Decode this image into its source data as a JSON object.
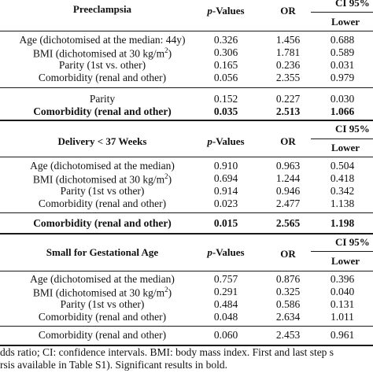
{
  "sections": [
    {
      "title": "Preeclampsia",
      "col_p": "p",
      "col_p_rest": "-Values",
      "col_or": "OR",
      "col_ci": "CI 95%",
      "col_lower": "Lower",
      "rows": [
        {
          "label": "Age (dichotomised at the median: 44y)",
          "p": "0.326",
          "or": "1.456",
          "lower": "0.688"
        },
        {
          "label": "BMI (dichotomised at 30 kg/m",
          "sup": "2",
          "label_end": ")",
          "p": "0.306",
          "or": "1.781",
          "lower": "0.589"
        },
        {
          "label": "Parity (1st vs. other)",
          "p": "0.165",
          "or": "0.236",
          "lower": "0.031"
        },
        {
          "label": "Comorbidity (renal and other)",
          "p": "0.056",
          "or": "2.355",
          "lower": "0.979"
        }
      ],
      "final_rows": [
        {
          "label": "Parity",
          "p": "0.152",
          "or": "0.227",
          "lower": "0.030"
        },
        {
          "label": "Comorbidity (renal and other)",
          "p": "0.035",
          "or": "2.513",
          "lower": "1.066"
        }
      ]
    },
    {
      "title": "Delivery < 37 Weeks",
      "col_p": "p",
      "col_p_rest": "-Values",
      "col_or": "OR",
      "col_ci": "CI 95%",
      "col_lower": "Lower",
      "rows": [
        {
          "label": "Age (dichotomised at the median)",
          "p": "0.910",
          "or": "0.963",
          "lower": "0.504"
        },
        {
          "label": "BMI (dichotomised at 30 kg/m",
          "sup": "2",
          "label_end": ")",
          "p": "0.694",
          "or": "1.244",
          "lower": "0.418"
        },
        {
          "label": "Parity (1st vs other)",
          "p": "0.914",
          "or": "0.946",
          "lower": "0.342"
        },
        {
          "label": "Comorbidity (renal and other)",
          "p": "0.023",
          "or": "2.477",
          "lower": "1.138"
        }
      ],
      "final_rows": [
        {
          "label": "Comorbidity (renal and other)",
          "p": "0.015",
          "or": "2.565",
          "lower": "1.198"
        }
      ]
    },
    {
      "title": "Small for Gestational Age",
      "col_p": "p",
      "col_p_rest": "-Values",
      "col_or": "OR",
      "col_ci": "CI 95%",
      "col_lower": "Lower",
      "rows": [
        {
          "label": "Age (dichotomised at the median)",
          "p": "0.757",
          "or": "0.876",
          "lower": "0.396"
        },
        {
          "label": "BMI (dichotomised at 30 kg/m",
          "sup": "2",
          "label_end": ")",
          "p": "0.291",
          "or": "0.325",
          "lower": "0.040"
        },
        {
          "label": "Parity (1st vs other)",
          "p": "0.484",
          "or": "0.586",
          "lower": "0.131"
        },
        {
          "label": "Comorbidity (renal and other)",
          "p": "0.048",
          "or": "2.634",
          "lower": "1.011"
        }
      ],
      "final_rows": [
        {
          "label": "Comorbidity (renal and other)",
          "p": "0.060",
          "or": "2.453",
          "lower": "0.961"
        }
      ]
    }
  ],
  "footnote": {
    "line1": "dds ratio; CI: confidence intervals. BMI: body mass index. First and last step s",
    "line2": "rsis available in Table S1). Significant results in bold."
  }
}
